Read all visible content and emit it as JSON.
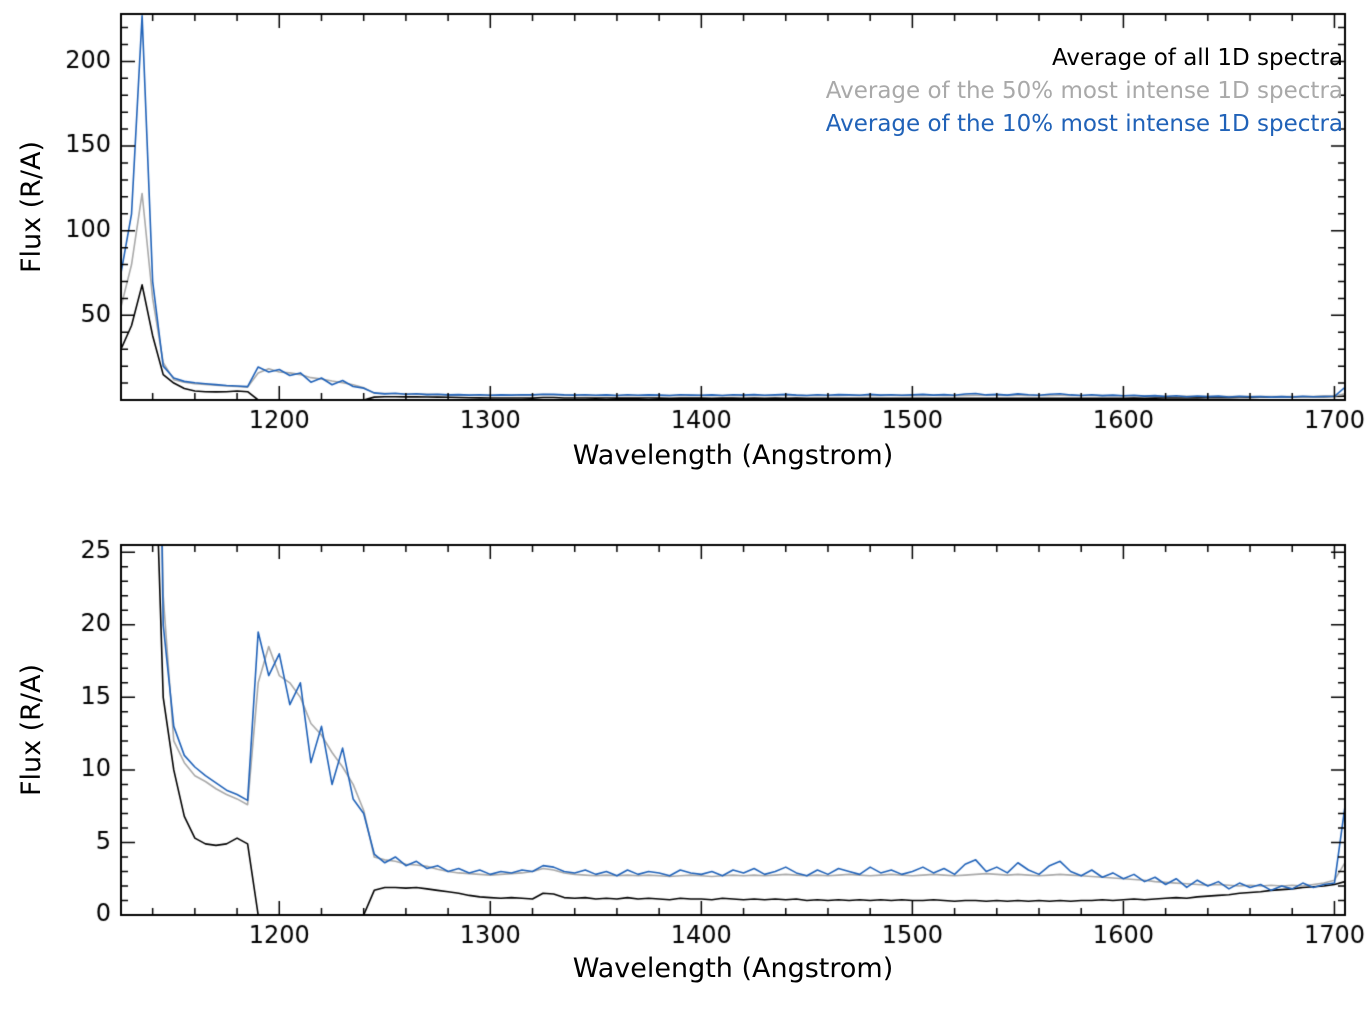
{
  "figure": {
    "background": "#ffffff"
  },
  "chart_data": {
    "type": "line",
    "title": "",
    "xlabel": "Wavelength (Angstrom)",
    "ylabel": "Flux (R/A)",
    "xlim": [
      1125,
      1705
    ],
    "xticks": [
      1200,
      1300,
      1400,
      1500,
      1600,
      1700
    ],
    "x_minor_step": 20,
    "grid": false,
    "legend_position": "top-right-inside-first-panel",
    "x": [
      1125,
      1130,
      1135,
      1140,
      1145,
      1150,
      1155,
      1160,
      1165,
      1170,
      1175,
      1180,
      1185,
      1190,
      1195,
      1200,
      1205,
      1210,
      1215,
      1220,
      1225,
      1230,
      1235,
      1240,
      1245,
      1250,
      1255,
      1260,
      1265,
      1270,
      1275,
      1280,
      1285,
      1290,
      1295,
      1300,
      1305,
      1310,
      1315,
      1320,
      1325,
      1330,
      1335,
      1340,
      1345,
      1350,
      1355,
      1360,
      1365,
      1370,
      1375,
      1380,
      1385,
      1390,
      1395,
      1400,
      1405,
      1410,
      1415,
      1420,
      1425,
      1430,
      1435,
      1440,
      1445,
      1450,
      1455,
      1460,
      1465,
      1470,
      1475,
      1480,
      1485,
      1490,
      1495,
      1500,
      1505,
      1510,
      1515,
      1520,
      1525,
      1530,
      1535,
      1540,
      1545,
      1550,
      1555,
      1560,
      1565,
      1570,
      1575,
      1580,
      1585,
      1590,
      1595,
      1600,
      1605,
      1610,
      1615,
      1620,
      1625,
      1630,
      1635,
      1640,
      1645,
      1650,
      1655,
      1660,
      1665,
      1670,
      1675,
      1680,
      1685,
      1690,
      1695,
      1700,
      1705
    ],
    "series": [
      {
        "name": "Average of all 1D spectra",
        "color": "#000000",
        "values": [
          30,
          44,
          68,
          38,
          15,
          10,
          6.8,
          5.3,
          4.9,
          4.8,
          4.9,
          5.3,
          4.9,
          0,
          0,
          0,
          0,
          0,
          0,
          0,
          0,
          0,
          0,
          0,
          1.7,
          1.9,
          1.9,
          1.85,
          1.9,
          1.8,
          1.7,
          1.6,
          1.5,
          1.35,
          1.25,
          1.2,
          1.15,
          1.2,
          1.15,
          1.1,
          1.5,
          1.45,
          1.2,
          1.15,
          1.2,
          1.1,
          1.15,
          1.1,
          1.2,
          1.1,
          1.15,
          1.1,
          1.05,
          1.15,
          1.1,
          1.1,
          1.05,
          1.15,
          1.1,
          1.05,
          1.1,
          1.05,
          1.1,
          1.05,
          1.1,
          1.0,
          1.05,
          1.0,
          1.05,
          1.0,
          1.05,
          1.0,
          1.05,
          1.0,
          1.05,
          1.0,
          1.0,
          1.05,
          1.0,
          0.95,
          1.0,
          1.0,
          0.95,
          1.0,
          0.95,
          1.0,
          0.95,
          1.0,
          0.95,
          1.0,
          0.95,
          1.0,
          1.0,
          1.05,
          1.0,
          1.05,
          1.1,
          1.05,
          1.1,
          1.15,
          1.2,
          1.15,
          1.25,
          1.3,
          1.35,
          1.4,
          1.5,
          1.55,
          1.6,
          1.7,
          1.75,
          1.8,
          1.9,
          1.95,
          2.0,
          2.1,
          2.3
        ]
      },
      {
        "name": "Average of the 50% most intense 1D spectra",
        "color": "#a9a9a9",
        "values": [
          55,
          80,
          122,
          60,
          22,
          12,
          10.5,
          9.6,
          9.2,
          8.7,
          8.3,
          8.0,
          7.6,
          16.0,
          18.5,
          16.5,
          16.0,
          15.0,
          13.2,
          12.4,
          11.2,
          10.2,
          9.0,
          7.2,
          4.0,
          3.8,
          3.7,
          3.5,
          3.45,
          3.35,
          3.15,
          3.0,
          2.9,
          2.85,
          2.8,
          2.75,
          2.8,
          2.85,
          2.9,
          3.0,
          3.2,
          3.1,
          2.9,
          2.8,
          2.75,
          2.7,
          2.75,
          2.7,
          2.75,
          2.7,
          2.75,
          2.7,
          2.65,
          2.7,
          2.75,
          2.7,
          2.65,
          2.7,
          2.75,
          2.7,
          2.75,
          2.7,
          2.75,
          2.8,
          2.75,
          2.7,
          2.75,
          2.7,
          2.75,
          2.8,
          2.75,
          2.7,
          2.75,
          2.8,
          2.75,
          2.7,
          2.75,
          2.8,
          2.75,
          2.7,
          2.75,
          2.8,
          2.85,
          2.8,
          2.75,
          2.8,
          2.75,
          2.7,
          2.75,
          2.8,
          2.75,
          2.7,
          2.65,
          2.6,
          2.55,
          2.5,
          2.45,
          2.4,
          2.3,
          2.25,
          2.2,
          2.15,
          2.1,
          2.05,
          2.1,
          2.05,
          2.0,
          2.05,
          2.0,
          2.05,
          2.0,
          2.05,
          2.0,
          2.1,
          2.2,
          2.4,
          3.6
        ]
      },
      {
        "name": "Average of the 10% most intense 1D spectra",
        "color": "#2062b8",
        "values": [
          75,
          110,
          227,
          70,
          20,
          13,
          11,
          10.2,
          9.6,
          9.1,
          8.6,
          8.3,
          7.9,
          19.5,
          16.5,
          18.0,
          14.5,
          16.0,
          10.5,
          13.0,
          9.0,
          11.5,
          8.0,
          7.0,
          4.2,
          3.6,
          4.0,
          3.4,
          3.7,
          3.2,
          3.4,
          3.0,
          3.2,
          2.9,
          3.1,
          2.8,
          3.0,
          2.9,
          3.1,
          3.0,
          3.4,
          3.3,
          3.0,
          2.9,
          3.1,
          2.8,
          3.0,
          2.7,
          3.1,
          2.8,
          3.0,
          2.9,
          2.7,
          3.1,
          2.9,
          2.8,
          3.0,
          2.7,
          3.1,
          2.9,
          3.2,
          2.8,
          3.0,
          3.3,
          2.9,
          2.7,
          3.1,
          2.8,
          3.2,
          3.0,
          2.8,
          3.3,
          2.9,
          3.1,
          2.8,
          3.0,
          3.3,
          2.9,
          3.2,
          2.8,
          3.5,
          3.8,
          3.0,
          3.3,
          2.9,
          3.6,
          3.1,
          2.8,
          3.4,
          3.7,
          3.0,
          2.7,
          3.1,
          2.6,
          2.9,
          2.5,
          2.8,
          2.3,
          2.6,
          2.1,
          2.5,
          1.9,
          2.4,
          2.0,
          2.3,
          1.8,
          2.2,
          1.9,
          2.1,
          1.7,
          2.0,
          1.8,
          2.2,
          1.9,
          2.1,
          2.2,
          7.5
        ]
      }
    ],
    "panels": [
      {
        "name": "full-range",
        "ylim": [
          0,
          228
        ],
        "yticks": [
          50,
          100,
          150,
          200
        ],
        "y_minor_step": 10,
        "legend": true
      },
      {
        "name": "zoomed",
        "ylim": [
          0,
          25.5
        ],
        "yticks": [
          0,
          5,
          10,
          15,
          20,
          25
        ],
        "y_minor_step": 1,
        "legend": false
      }
    ]
  }
}
